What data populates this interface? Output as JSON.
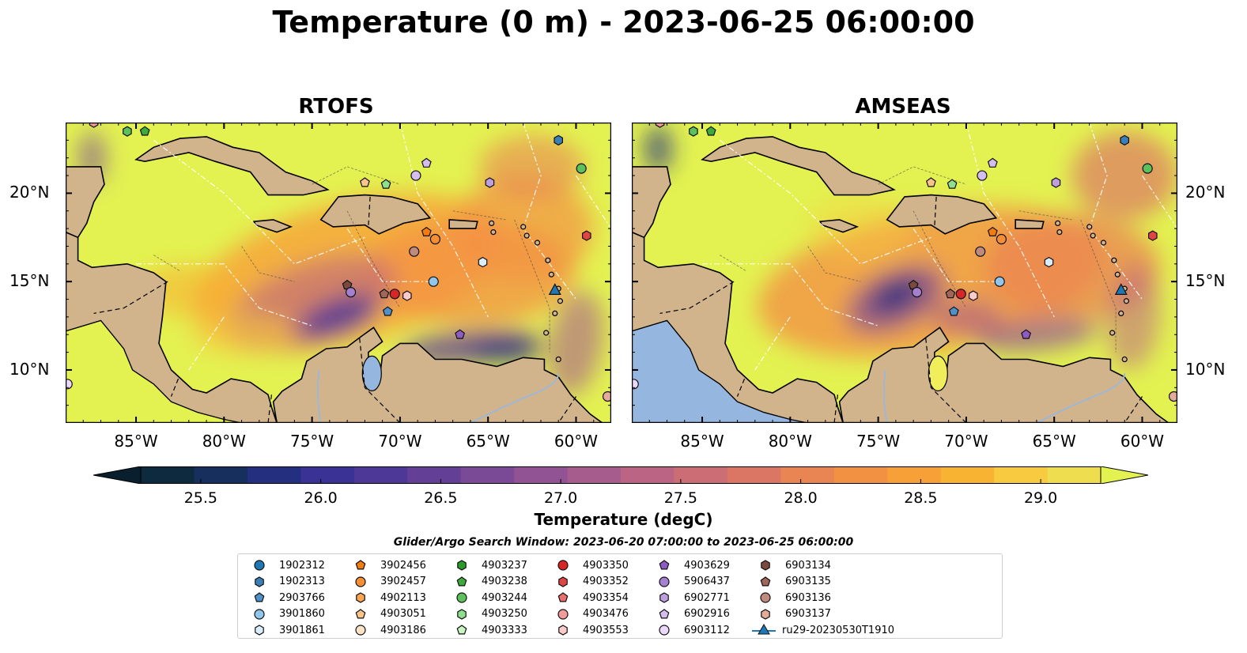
{
  "title": "Temperature (0 m) - 2023-06-25 06:00:00",
  "panels": [
    {
      "title": "RTOFS"
    },
    {
      "title": "AMSEAS"
    }
  ],
  "axes": {
    "x_ticks": [
      "85°W",
      "80°W",
      "75°W",
      "70°W",
      "65°W",
      "60°W"
    ],
    "y_ticks": [
      "20°N",
      "15°N",
      "10°N"
    ],
    "lon_range": [
      -89,
      -58
    ],
    "lat_range": [
      7,
      24
    ]
  },
  "colorbar": {
    "title": "Temperature (degC)",
    "ticks": [
      "25.5",
      "26.0",
      "26.5",
      "27.0",
      "27.5",
      "28.0",
      "28.5",
      "29.0"
    ],
    "range": [
      25.25,
      29.25
    ],
    "colors": [
      "#0e2a3e",
      "#162f5d",
      "#252f80",
      "#3a3294",
      "#4d3898",
      "#633f96",
      "#7a4a96",
      "#915394",
      "#a65c8d",
      "#bb6483",
      "#cc6d75",
      "#dc7664",
      "#e98453",
      "#f39143",
      "#f7a037",
      "#f9b332",
      "#f7ca3f",
      "#eede4f"
    ],
    "extend_low": "#0a1f2e",
    "extend_high": "#e3f251"
  },
  "legend": {
    "title": "Glider/Argo Search Window: 2023-06-20 07:00:00 to 2023-06-25 06:00:00",
    "items": [
      {
        "label": "1902312",
        "marker": "circle",
        "color": "#1f77b4"
      },
      {
        "label": "1902313",
        "marker": "hexagon",
        "color": "#3a7fb8"
      },
      {
        "label": "2903766",
        "marker": "pentagon",
        "color": "#4e90c8"
      },
      {
        "label": "3901860",
        "marker": "circle",
        "color": "#8ec6ec"
      },
      {
        "label": "3901861",
        "marker": "hexagon",
        "color": "#d9eefa"
      },
      {
        "label": "3902456",
        "marker": "pentagon",
        "color": "#f07c12"
      },
      {
        "label": "3902457",
        "marker": "circle",
        "color": "#f58e34"
      },
      {
        "label": "4902113",
        "marker": "hexagon",
        "color": "#f9a653"
      },
      {
        "label": "4903051",
        "marker": "pentagon",
        "color": "#fbc48b"
      },
      {
        "label": "4903186",
        "marker": "circle",
        "color": "#fde3c6"
      },
      {
        "label": "4903237",
        "marker": "hexagon",
        "color": "#2a9a2a"
      },
      {
        "label": "4903238",
        "marker": "pentagon",
        "color": "#3daa3d"
      },
      {
        "label": "4903244",
        "marker": "circle",
        "color": "#5cc05c"
      },
      {
        "label": "4903250",
        "marker": "hexagon",
        "color": "#8ee08e"
      },
      {
        "label": "4903333",
        "marker": "pentagon",
        "color": "#c8f5c0"
      },
      {
        "label": "4903350",
        "marker": "circle",
        "color": "#d62728"
      },
      {
        "label": "4903352",
        "marker": "hexagon",
        "color": "#e04545"
      },
      {
        "label": "4903354",
        "marker": "pentagon",
        "color": "#ea6e6e"
      },
      {
        "label": "4903476",
        "marker": "circle",
        "color": "#f39a9a"
      },
      {
        "label": "4903553",
        "marker": "hexagon",
        "color": "#fbcaca"
      },
      {
        "label": "4903629",
        "marker": "pentagon",
        "color": "#8e5bc0"
      },
      {
        "label": "5906437",
        "marker": "circle",
        "color": "#a580cf"
      },
      {
        "label": "6902771",
        "marker": "hexagon",
        "color": "#bf9ee0"
      },
      {
        "label": "6902916",
        "marker": "pentagon",
        "color": "#d6bdf0"
      },
      {
        "label": "6903112",
        "marker": "circle",
        "color": "#ead9fb"
      },
      {
        "label": "6903134",
        "marker": "hexagon",
        "color": "#7b4a3c"
      },
      {
        "label": "6903135",
        "marker": "pentagon",
        "color": "#a0665a"
      },
      {
        "label": "6903136",
        "marker": "circle",
        "color": "#bf8a7e"
      },
      {
        "label": "6903137",
        "marker": "hexagon",
        "color": "#e3ab9a"
      },
      {
        "label": "ru29-20230530T1910",
        "marker": "triangle-line",
        "color": "#1f77b4"
      }
    ]
  },
  "floats": [
    {
      "lon": -84.5,
      "lat": 23.5,
      "color": "#3daa3d",
      "marker": "pentagon"
    },
    {
      "lon": -85.5,
      "lat": 23.5,
      "color": "#5cc05c",
      "marker": "hexagon"
    },
    {
      "lon": -61.0,
      "lat": 23.0,
      "color": "#3a7fb8",
      "marker": "hexagon"
    },
    {
      "lon": -59.7,
      "lat": 21.4,
      "color": "#5cc05c",
      "marker": "circle"
    },
    {
      "lon": -72.0,
      "lat": 20.6,
      "color": "#fbc48b",
      "marker": "pentagon"
    },
    {
      "lon": -70.8,
      "lat": 20.5,
      "color": "#8ee08e",
      "marker": "pentagon"
    },
    {
      "lon": -69.1,
      "lat": 21.0,
      "color": "#d6bdf0",
      "marker": "circle"
    },
    {
      "lon": -68.5,
      "lat": 21.7,
      "color": "#d6bdf0",
      "marker": "pentagon"
    },
    {
      "lon": -64.9,
      "lat": 20.6,
      "color": "#bf9ee0",
      "marker": "hexagon"
    },
    {
      "lon": -68.5,
      "lat": 17.8,
      "color": "#f07c12",
      "marker": "pentagon"
    },
    {
      "lon": -68.0,
      "lat": 17.4,
      "color": "#f58e34",
      "marker": "circle"
    },
    {
      "lon": -59.4,
      "lat": 17.6,
      "color": "#e04545",
      "marker": "hexagon"
    },
    {
      "lon": -69.2,
      "lat": 16.7,
      "color": "#bf8a7e",
      "marker": "circle"
    },
    {
      "lon": -65.3,
      "lat": 16.1,
      "color": "#d9eefa",
      "marker": "hexagon"
    },
    {
      "lon": -68.1,
      "lat": 15.0,
      "color": "#8ec6ec",
      "marker": "circle"
    },
    {
      "lon": -73.0,
      "lat": 14.8,
      "color": "#7b4a3c",
      "marker": "pentagon"
    },
    {
      "lon": -72.8,
      "lat": 14.4,
      "color": "#a580cf",
      "marker": "circle"
    },
    {
      "lon": -70.9,
      "lat": 14.3,
      "color": "#a0665a",
      "marker": "pentagon"
    },
    {
      "lon": -70.3,
      "lat": 14.3,
      "color": "#d62728",
      "marker": "circle"
    },
    {
      "lon": -69.6,
      "lat": 14.2,
      "color": "#fbcaca",
      "marker": "hexagon"
    },
    {
      "lon": -70.7,
      "lat": 13.3,
      "color": "#4e90c8",
      "marker": "pentagon"
    },
    {
      "lon": -66.6,
      "lat": 12.0,
      "color": "#8e5bc0",
      "marker": "pentagon"
    },
    {
      "lon": -88.9,
      "lat": 9.2,
      "color": "#ead9fb",
      "marker": "circle"
    },
    {
      "lon": -58.2,
      "lat": 8.5,
      "color": "#e3ab9a",
      "marker": "circle"
    },
    {
      "lon": -87.4,
      "lat": 24.0,
      "color": "#f39a9a",
      "marker": "hexagon"
    }
  ],
  "glider": {
    "lon": -61.2,
    "lat": 14.5,
    "color": "#1f77b4"
  }
}
